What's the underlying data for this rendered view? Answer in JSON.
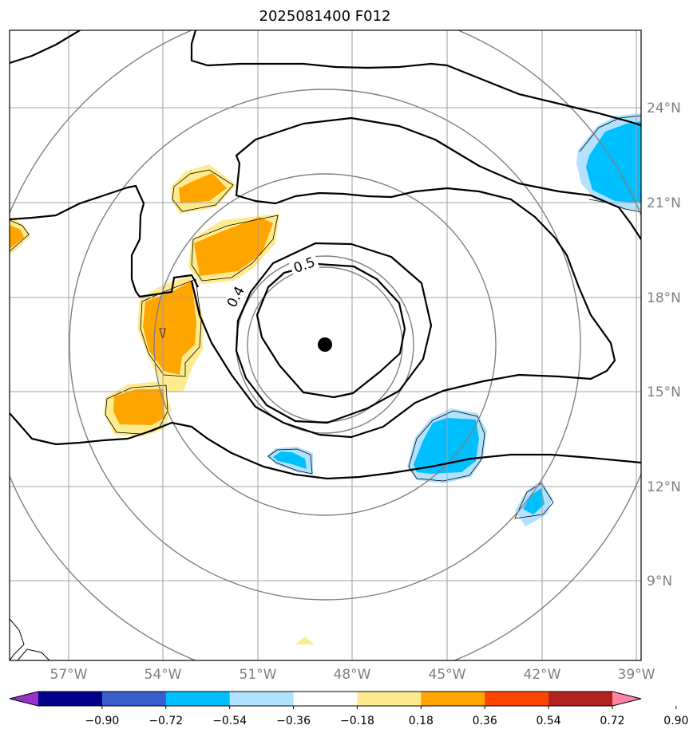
{
  "title": "2025081400 F012",
  "map": {
    "lon_range": [
      -58.25,
      -38.75
    ],
    "lat_range": [
      6.5,
      26.5
    ],
    "lon_ticks": [
      {
        "value": -57,
        "label": "57°W"
      },
      {
        "value": -54,
        "label": "54°W"
      },
      {
        "value": -51,
        "label": "51°W"
      },
      {
        "value": -48,
        "label": "48°W"
      },
      {
        "value": -45,
        "label": "45°W"
      },
      {
        "value": -42,
        "label": "42°W"
      },
      {
        "value": -39,
        "label": "39°W"
      }
    ],
    "lat_ticks": [
      {
        "value": 9,
        "label": "9°N"
      },
      {
        "value": 12,
        "label": "12°N"
      },
      {
        "value": 15,
        "label": "15°N"
      },
      {
        "value": 18,
        "label": "18°N"
      },
      {
        "value": 21,
        "label": "21°N"
      },
      {
        "value": 24,
        "label": "24°N"
      }
    ],
    "storm_center": {
      "lon": -48.5,
      "lat": 16.5
    },
    "contour_labels": [
      {
        "text": "0.5",
        "lon": -47.4,
        "lat": 18.9,
        "angle": -20
      },
      {
        "text": "0.4",
        "lon": -50.7,
        "lat": 17.9,
        "angle": -62
      }
    ]
  },
  "colorbar": {
    "labels": [
      "−0.90",
      "−0.72",
      "−0.54",
      "−0.36",
      "−0.18",
      "0.18",
      "0.36",
      "0.54",
      "0.72",
      "0.90"
    ],
    "colors": {
      "under": "#9932cc",
      "bins": [
        "#00008b",
        "#3a5fcd",
        "#00bfff",
        "#b2e2ff",
        "#ffffff",
        "#ffeb8f",
        "#ffa500",
        "#ff4500",
        "#b22222"
      ],
      "over": "#ff85a6"
    }
  }
}
